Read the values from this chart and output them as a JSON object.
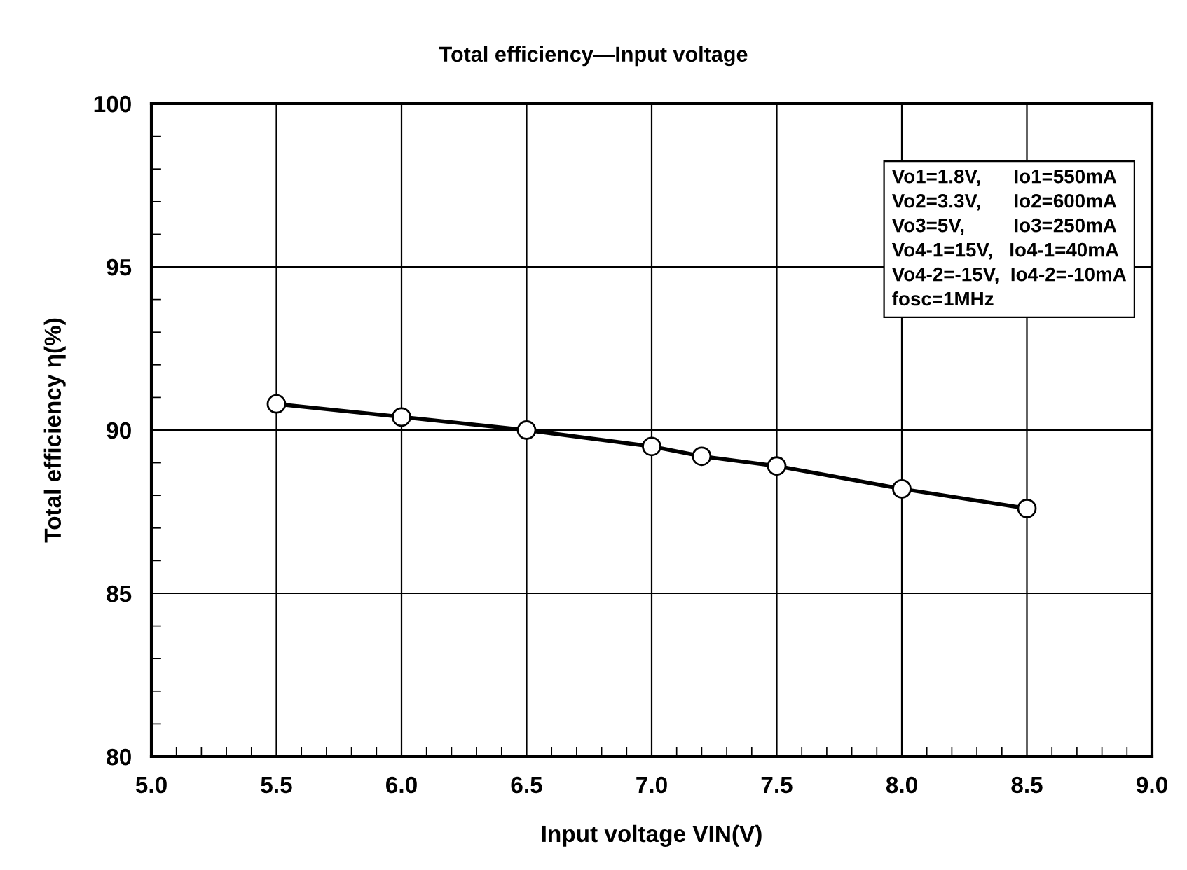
{
  "chart_data": {
    "type": "line",
    "title": "Total efficiency—Input voltage",
    "xlabel": "Input voltage VIN(V)",
    "ylabel": "Total efficiency η(%)",
    "x": [
      5.5,
      6.0,
      6.5,
      7.0,
      7.2,
      7.5,
      8.0,
      8.5
    ],
    "series": [
      {
        "color": "#000000",
        "values": [
          90.8,
          90.4,
          90.0,
          89.5,
          89.2,
          88.9,
          88.2,
          87.6
        ]
      }
    ],
    "xlim": [
      5.0,
      9.0
    ],
    "xticks": [
      {
        "value": 5.0,
        "label": "5.0"
      },
      {
        "value": 5.5,
        "label": "5.5"
      },
      {
        "value": 6.0,
        "label": "6.0"
      },
      {
        "value": 6.5,
        "label": "6.5"
      },
      {
        "value": 7.0,
        "label": "7.0"
      },
      {
        "value": 7.5,
        "label": "7.5"
      },
      {
        "value": 8.0,
        "label": "8.0"
      },
      {
        "value": 8.5,
        "label": "8.5"
      },
      {
        "value": 9.0,
        "label": "9.0"
      }
    ],
    "ylim": [
      80,
      100
    ],
    "yticks": [
      80,
      85,
      90,
      95,
      100
    ],
    "grid": true,
    "marker": "circle",
    "line_style": "solid",
    "annotations": [
      "Vo1=1.8V,      Io1=550mA\nVo2=3.3V,      Io2=600mA\nVo3=5V,         Io3=250mA\nVo4-1=15V,   Io4-1=40mA\nVo4-2=-15V,  Io4-2=-10mA\nfosc=1MHz"
    ]
  }
}
